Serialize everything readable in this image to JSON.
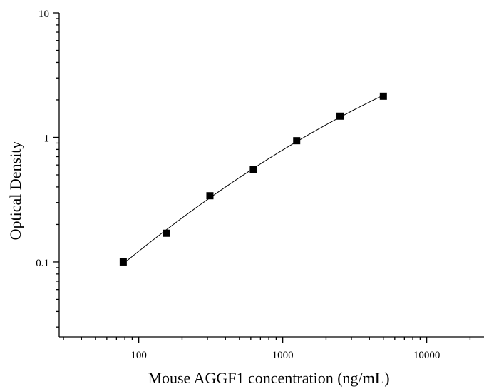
{
  "chart_data": {
    "type": "scatter",
    "xlabel": "Mouse AGGF1 concentration (ng/mL)",
    "ylabel": "Optical Density",
    "x_scale": "log",
    "y_scale": "log",
    "xlim": [
      28,
      25000
    ],
    "ylim": [
      0.025,
      10
    ],
    "x_ticks": [
      100,
      1000,
      10000
    ],
    "x_tick_labels": [
      "100",
      "1000",
      "10000"
    ],
    "y_ticks": [
      0.1,
      1,
      10
    ],
    "y_tick_labels": [
      "0.1",
      "1",
      "10"
    ],
    "grid": false,
    "legend": "none",
    "series": [
      {
        "points": [
          {
            "x": 78,
            "y": 0.1
          },
          {
            "x": 156,
            "y": 0.17
          },
          {
            "x": 312,
            "y": 0.34
          },
          {
            "x": 625,
            "y": 0.55
          },
          {
            "x": 1250,
            "y": 0.94
          },
          {
            "x": 2500,
            "y": 1.48
          },
          {
            "x": 5000,
            "y": 2.14
          }
        ],
        "color": "#000000",
        "marker": "square",
        "fit_curve": true
      }
    ]
  }
}
